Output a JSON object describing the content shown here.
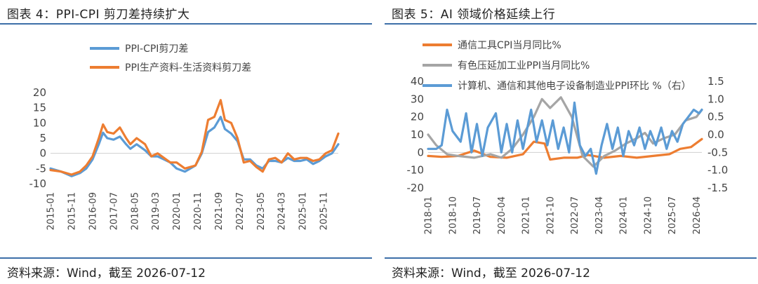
{
  "left": {
    "title": "图表 4：PPI-CPI 剪刀差持续扩大",
    "source": "资料来源：Wind，截至 2026-07-12"
  },
  "right": {
    "title": "图表 5：AI 领域价格延续上行",
    "source": "资料来源：Wind，截至 2026-07-12"
  },
  "colors": {
    "blue": "#5b9bd5",
    "orange": "#ed7d31",
    "gray": "#a5a5a5",
    "rule": "#3d6fa8"
  },
  "chart_data": [
    {
      "type": "line",
      "title": "",
      "xlabel": "",
      "ylabel": "",
      "ylim": [
        -10,
        20
      ],
      "y_ticks": [
        "-10",
        "-5",
        "0",
        "5",
        "10",
        "15",
        "20"
      ],
      "x_ticks": [
        "2015-01",
        "2015-11",
        "2016-09",
        "2017-07",
        "2018-05",
        "2019-03",
        "2020-01",
        "2020-11",
        "2021-09",
        "2022-07",
        "2023-05",
        "2024-03",
        "2025-01",
        "2025-11"
      ],
      "legend_position": "top-center",
      "grid": false,
      "series": [
        {
          "name": "PPI-CPI剪刀差",
          "color": "#5b9bd5",
          "points": [
            [
              "2015-01",
              -5
            ],
            [
              "2015-06",
              -6
            ],
            [
              "2015-11",
              -7.5
            ],
            [
              "2016-03",
              -6.5
            ],
            [
              "2016-06",
              -5
            ],
            [
              "2016-09",
              -2
            ],
            [
              "2016-12",
              3
            ],
            [
              "2017-02",
              6.8
            ],
            [
              "2017-04",
              5
            ],
            [
              "2017-07",
              4.5
            ],
            [
              "2017-10",
              5.5
            ],
            [
              "2018-01",
              3
            ],
            [
              "2018-03",
              1.5
            ],
            [
              "2018-06",
              3
            ],
            [
              "2018-10",
              1
            ],
            [
              "2019-01",
              -1
            ],
            [
              "2019-04",
              -1
            ],
            [
              "2019-07",
              -2
            ],
            [
              "2019-10",
              -3
            ],
            [
              "2020-01",
              -5
            ],
            [
              "2020-05",
              -6
            ],
            [
              "2020-10",
              -4
            ],
            [
              "2021-01",
              0
            ],
            [
              "2021-04",
              7
            ],
            [
              "2021-07",
              8.5
            ],
            [
              "2021-10",
              12
            ],
            [
              "2021-12",
              8
            ],
            [
              "2022-03",
              6.5
            ],
            [
              "2022-06",
              4
            ],
            [
              "2022-09",
              -2
            ],
            [
              "2022-12",
              -2
            ],
            [
              "2023-03",
              -4
            ],
            [
              "2023-06",
              -5
            ],
            [
              "2023-09",
              -2.5
            ],
            [
              "2023-12",
              -2.5
            ],
            [
              "2024-03",
              -3
            ],
            [
              "2024-06",
              -1.5
            ],
            [
              "2024-09",
              -2.5
            ],
            [
              "2024-12",
              -2.5
            ],
            [
              "2025-03",
              -2
            ],
            [
              "2025-06",
              -3.5
            ],
            [
              "2025-09",
              -2.5
            ],
            [
              "2025-12",
              -1
            ],
            [
              "2026-03",
              0
            ],
            [
              "2026-06",
              3
            ]
          ]
        },
        {
          "name": "PPI生产资料-生活资料剪刀差",
          "color": "#ed7d31",
          "points": [
            [
              "2015-01",
              -5.5
            ],
            [
              "2015-06",
              -6
            ],
            [
              "2015-11",
              -7
            ],
            [
              "2016-03",
              -6
            ],
            [
              "2016-06",
              -4
            ],
            [
              "2016-09",
              -1
            ],
            [
              "2016-12",
              5
            ],
            [
              "2017-02",
              9.5
            ],
            [
              "2017-04",
              7
            ],
            [
              "2017-07",
              6.5
            ],
            [
              "2017-10",
              8.5
            ],
            [
              "2018-01",
              5
            ],
            [
              "2018-03",
              3
            ],
            [
              "2018-06",
              5
            ],
            [
              "2018-10",
              3
            ],
            [
              "2019-01",
              -1
            ],
            [
              "2019-04",
              0
            ],
            [
              "2019-07",
              -1.5
            ],
            [
              "2019-10",
              -3
            ],
            [
              "2020-01",
              -3
            ],
            [
              "2020-05",
              -5
            ],
            [
              "2020-10",
              -4
            ],
            [
              "2021-01",
              0.5
            ],
            [
              "2021-04",
              11
            ],
            [
              "2021-07",
              12
            ],
            [
              "2021-10",
              17.5
            ],
            [
              "2021-12",
              11
            ],
            [
              "2022-03",
              10
            ],
            [
              "2022-06",
              5
            ],
            [
              "2022-09",
              -3
            ],
            [
              "2022-12",
              -2.5
            ],
            [
              "2023-03",
              -4.5
            ],
            [
              "2023-06",
              -6
            ],
            [
              "2023-09",
              -2
            ],
            [
              "2023-12",
              -1.5
            ],
            [
              "2024-03",
              -3
            ],
            [
              "2024-06",
              0
            ],
            [
              "2024-09",
              -2
            ],
            [
              "2024-12",
              -1.5
            ],
            [
              "2025-03",
              -1.5
            ],
            [
              "2025-06",
              -2.5
            ],
            [
              "2025-09",
              -2
            ],
            [
              "2025-12",
              0
            ],
            [
              "2026-03",
              1
            ],
            [
              "2026-06",
              6.5
            ]
          ]
        }
      ]
    },
    {
      "type": "line",
      "title": "",
      "xlabel": "",
      "ylabel": "",
      "ylim": [
        -20,
        40
      ],
      "y2lim": [
        -1.5,
        1.5
      ],
      "y_ticks": [
        "-20",
        "-10",
        "0",
        "10",
        "20",
        "30",
        "40"
      ],
      "y2_ticks": [
        "-1.5",
        "-1.0",
        "-0.5",
        "0.0",
        "0.5",
        "1.0",
        "1.5"
      ],
      "x_ticks": [
        "2018-01",
        "2018-10",
        "2019-07",
        "2020-04",
        "2021-01",
        "2021-10",
        "2022-07",
        "2023-04",
        "2024-01",
        "2024-10",
        "2025-07",
        "2026-04"
      ],
      "legend_position": "top",
      "grid": false,
      "series": [
        {
          "name": "通信工具CPI当月同比%",
          "color": "#ed7d31",
          "axis": "left",
          "points": [
            [
              "2018-01",
              -2
            ],
            [
              "2018-06",
              -2.5
            ],
            [
              "2018-12",
              -2
            ],
            [
              "2019-06",
              1
            ],
            [
              "2019-12",
              -2.5
            ],
            [
              "2020-06",
              -3
            ],
            [
              "2020-12",
              -1
            ],
            [
              "2021-04",
              6
            ],
            [
              "2021-08",
              5
            ],
            [
              "2021-10",
              -4
            ],
            [
              "2022-03",
              -3
            ],
            [
              "2022-08",
              -3
            ],
            [
              "2022-12",
              -1.5
            ],
            [
              "2023-06",
              -3
            ],
            [
              "2023-12",
              -2
            ],
            [
              "2024-06",
              -3
            ],
            [
              "2024-12",
              -2
            ],
            [
              "2025-06",
              -1
            ],
            [
              "2025-10",
              2
            ],
            [
              "2026-02",
              3
            ],
            [
              "2026-06",
              7.5
            ]
          ]
        },
        {
          "name": "有色压延加工业PPI当月同比%",
          "color": "#a5a5a5",
          "axis": "left",
          "points": [
            [
              "2018-01",
              10
            ],
            [
              "2018-04",
              4
            ],
            [
              "2018-08",
              -1
            ],
            [
              "2018-12",
              -2
            ],
            [
              "2019-06",
              -3
            ],
            [
              "2019-12",
              -1
            ],
            [
              "2020-04",
              -3
            ],
            [
              "2020-08",
              2
            ],
            [
              "2020-12",
              10
            ],
            [
              "2021-04",
              20
            ],
            [
              "2021-07",
              30
            ],
            [
              "2021-10",
              25
            ],
            [
              "2022-02",
              31
            ],
            [
              "2022-06",
              20
            ],
            [
              "2022-10",
              -2
            ],
            [
              "2023-02",
              -8
            ],
            [
              "2023-06",
              -2
            ],
            [
              "2023-10",
              1
            ],
            [
              "2024-02",
              5
            ],
            [
              "2024-06",
              8
            ],
            [
              "2024-09",
              11
            ],
            [
              "2024-12",
              5
            ],
            [
              "2025-04",
              8
            ],
            [
              "2025-08",
              10
            ],
            [
              "2025-12",
              18
            ],
            [
              "2026-04",
              20
            ],
            [
              "2026-06",
              24
            ]
          ]
        },
        {
          "name": "计算机、通信和其他电子设备制造业PPI环比 %（右）",
          "color": "#5b9bd5",
          "axis": "right",
          "points": [
            [
              "2018-01",
              -0.4
            ],
            [
              "2018-04",
              -0.4
            ],
            [
              "2018-06",
              -0.3
            ],
            [
              "2018-08",
              0.7
            ],
            [
              "2018-10",
              0.1
            ],
            [
              "2019-01",
              -0.2
            ],
            [
              "2019-03",
              0.6
            ],
            [
              "2019-05",
              -0.5
            ],
            [
              "2019-07",
              0.3
            ],
            [
              "2019-09",
              -0.6
            ],
            [
              "2019-11",
              0.2
            ],
            [
              "2020-02",
              0.6
            ],
            [
              "2020-04",
              -0.5
            ],
            [
              "2020-06",
              0.3
            ],
            [
              "2020-08",
              -0.5
            ],
            [
              "2020-10",
              0.4
            ],
            [
              "2020-12",
              -0.4
            ],
            [
              "2021-03",
              0.7
            ],
            [
              "2021-05",
              -0.2
            ],
            [
              "2021-07",
              0.4
            ],
            [
              "2021-09",
              -0.3
            ],
            [
              "2021-11",
              0.4
            ],
            [
              "2022-01",
              -0.4
            ],
            [
              "2022-03",
              0.2
            ],
            [
              "2022-05",
              -0.5
            ],
            [
              "2022-07",
              0.9
            ],
            [
              "2022-09",
              -0.3
            ],
            [
              "2022-11",
              -0.6
            ],
            [
              "2023-01",
              -0.4
            ],
            [
              "2023-03",
              -1.1
            ],
            [
              "2023-05",
              -0.3
            ],
            [
              "2023-07",
              0.3
            ],
            [
              "2023-09",
              -0.4
            ],
            [
              "2023-11",
              0.2
            ],
            [
              "2024-01",
              -0.6
            ],
            [
              "2024-03",
              0.1
            ],
            [
              "2024-05",
              -0.3
            ],
            [
              "2024-07",
              0.2
            ],
            [
              "2024-09",
              -0.4
            ],
            [
              "2024-11",
              0.1
            ],
            [
              "2025-01",
              -0.3
            ],
            [
              "2025-03",
              0.2
            ],
            [
              "2025-05",
              -0.4
            ],
            [
              "2025-07",
              0.1
            ],
            [
              "2025-09",
              -0.2
            ],
            [
              "2025-11",
              0.3
            ],
            [
              "2026-01",
              0.5
            ],
            [
              "2026-03",
              0.7
            ],
            [
              "2026-05",
              0.6
            ],
            [
              "2026-06",
              0.7
            ]
          ]
        }
      ]
    }
  ]
}
